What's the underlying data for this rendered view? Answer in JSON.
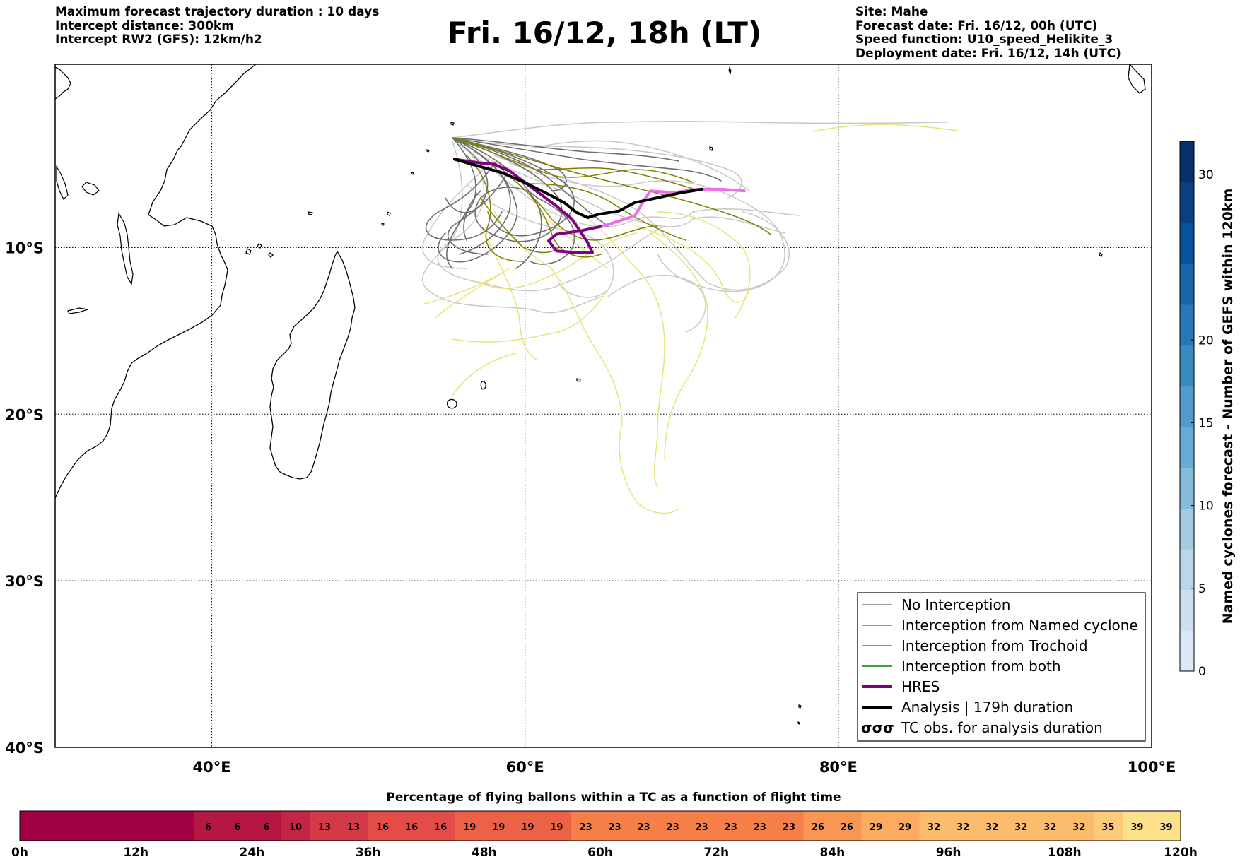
{
  "header": {
    "left_lines": [
      "Maximum forecast trajectory duration : 10 days",
      "Intercept distance: 300km",
      "Intercept RW2 (GFS):  12km/h2"
    ],
    "title": "Fri. 16/12, 18h (LT)",
    "right_lines": [
      "Site: Mahe",
      "Forecast date: Fri. 16/12, 00h (UTC)",
      "Speed function: U10_speed_Helikite_3",
      "Deployment date: Fri. 16/12, 14h (UTC)"
    ]
  },
  "map": {
    "lon_range": [
      30,
      100
    ],
    "lat_range": [
      -40,
      1
    ],
    "lon_ticks": [
      {
        "value": 40,
        "label": "40°E"
      },
      {
        "value": 60,
        "label": "60°E"
      },
      {
        "value": 80,
        "label": "80°E"
      },
      {
        "value": 100,
        "label": "100°E"
      }
    ],
    "lat_ticks": [
      {
        "value": -10,
        "label": "10°S"
      },
      {
        "value": -20,
        "label": "20°S"
      },
      {
        "value": -30,
        "label": "30°S"
      },
      {
        "value": -40,
        "label": "40°S"
      }
    ],
    "grid": "dotted"
  },
  "legend": {
    "items": [
      {
        "label": "No Interception",
        "color": "#808080",
        "style": "thin"
      },
      {
        "label": "Interception from Named cyclone",
        "color": "#ff4500",
        "style": "thin"
      },
      {
        "label": "Interception from Trochoid",
        "color": "#808000",
        "style": "thin"
      },
      {
        "label": "Interception from both",
        "color": "#008000",
        "style": "thin"
      },
      {
        "label": "HRES",
        "color": "#800080",
        "style": "thick"
      },
      {
        "label": "Analysis | 179h duration",
        "color": "#000000",
        "style": "thick"
      },
      {
        "label": "TC obs. for analysis duration",
        "color": "#000000",
        "style": "symbol",
        "symbol": "σσσ"
      }
    ]
  },
  "colorbar_right": {
    "label": "Named cyclones forecast - Number of GEFS within 120km",
    "ticks": [
      "0",
      "5",
      "10",
      "15",
      "20",
      "30"
    ],
    "tick_values": [
      0,
      5,
      10,
      15,
      20,
      30
    ],
    "max_value": 32,
    "colors": [
      "#dbe9f6",
      "#cde0f1",
      "#bad6eb",
      "#a3cce3",
      "#85bcdc",
      "#68acd5",
      "#519ccc",
      "#3a8ac2",
      "#2878b8",
      "#1764ab",
      "#08519c",
      "#0a3f82",
      "#08306b"
    ]
  },
  "colorbar_bottom": {
    "title": "Percentage of flying ballons within a TC as a function of flight time",
    "cells": [
      "",
      "",
      "",
      "",
      "",
      "",
      "6",
      "6",
      "6",
      "10",
      "13",
      "13",
      "16",
      "16",
      "16",
      "19",
      "19",
      "19",
      "19",
      "23",
      "23",
      "23",
      "23",
      "23",
      "23",
      "23",
      "23",
      "26",
      "26",
      "29",
      "29",
      "32",
      "32",
      "32",
      "32",
      "32",
      "32",
      "35",
      "39",
      "39"
    ],
    "hour_labels": [
      "0h",
      "12h",
      "24h",
      "36h",
      "48h",
      "60h",
      "72h",
      "84h",
      "96h",
      "108h",
      "120h"
    ]
  },
  "chart_data": {
    "type": "line",
    "xlabel": "",
    "ylabel": "",
    "xlim": [
      30,
      100
    ],
    "ylim": [
      -40,
      1
    ],
    "site": {
      "name": "Mahe",
      "lon": 55.5,
      "lat": -4.7
    },
    "series": [
      {
        "name": "HRES",
        "color": "#800080",
        "points": [
          [
            55.5,
            -4.7
          ],
          [
            57,
            -4.9
          ],
          [
            58,
            -5.0
          ],
          [
            59,
            -5.4
          ],
          [
            60,
            -6.1
          ],
          [
            61,
            -6.8
          ],
          [
            62,
            -7.5
          ],
          [
            63,
            -8.3
          ],
          [
            63.5,
            -9.0
          ],
          [
            64,
            -9.7
          ],
          [
            64.3,
            -10.3
          ],
          [
            63.2,
            -10.3
          ],
          [
            62,
            -10.2
          ],
          [
            61.5,
            -9.6
          ],
          [
            62,
            -9.2
          ],
          [
            63.5,
            -9.0
          ],
          [
            65,
            -8.7
          ],
          [
            67,
            -8.1
          ],
          [
            67.5,
            -7.3
          ],
          [
            68,
            -6.6
          ],
          [
            69.5,
            -6.7
          ],
          [
            71,
            -6.5
          ],
          [
            72.5,
            -6.5
          ],
          [
            74,
            -6.6
          ]
        ]
      },
      {
        "name": "Analysis | 179h duration",
        "color": "#000000",
        "points": [
          [
            55.5,
            -4.7
          ],
          [
            57,
            -5.1
          ],
          [
            58.5,
            -5.5
          ],
          [
            60,
            -6.1
          ],
          [
            61.5,
            -6.8
          ],
          [
            62.5,
            -7.3
          ],
          [
            63.3,
            -7.9
          ],
          [
            64,
            -8.2
          ],
          [
            64.7,
            -8.0
          ],
          [
            66,
            -7.8
          ],
          [
            67,
            -7.3
          ],
          [
            68.5,
            -7.0
          ],
          [
            70,
            -6.7
          ],
          [
            71.3,
            -6.5
          ]
        ]
      }
    ]
  }
}
